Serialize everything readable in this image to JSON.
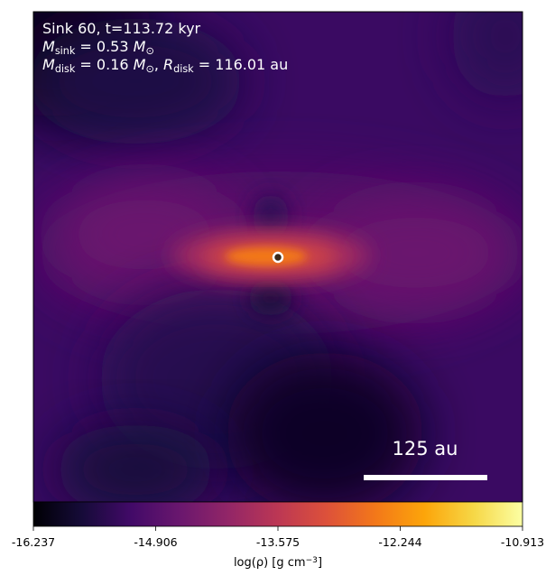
{
  "chart_data": {
    "type": "heatmap",
    "annotations": [
      [
        {
          "text": "Sink 60, t=113.72 kyr"
        }
      ],
      [
        {
          "text": "M",
          "italic": true
        },
        {
          "text": "sink",
          "sub": true
        },
        {
          "text": " = 0.53 "
        },
        {
          "text": "M",
          "italic": true
        },
        {
          "text": "⊙",
          "sub": true
        }
      ],
      [
        {
          "text": "M",
          "italic": true
        },
        {
          "text": "disk",
          "sub": true
        },
        {
          "text": " = 0.16 "
        },
        {
          "text": "M",
          "italic": true
        },
        {
          "text": "⊙",
          "sub": true
        },
        {
          "text": ", "
        },
        {
          "text": "R",
          "italic": true
        },
        {
          "text": "disk",
          "sub": true
        },
        {
          "text": " = 116.01 au"
        }
      ]
    ],
    "scale_bar": "125 au",
    "colormap": "inferno",
    "colorbar_label": [
      {
        "text": "log(ρ) [g cm"
      },
      {
        "text": "−3",
        "sup": true
      },
      {
        "text": "]"
      }
    ],
    "clim": [
      -16.237,
      -10.913
    ],
    "cticks": [
      -16.237,
      -14.906,
      -13.575,
      -12.244,
      -10.913
    ]
  }
}
